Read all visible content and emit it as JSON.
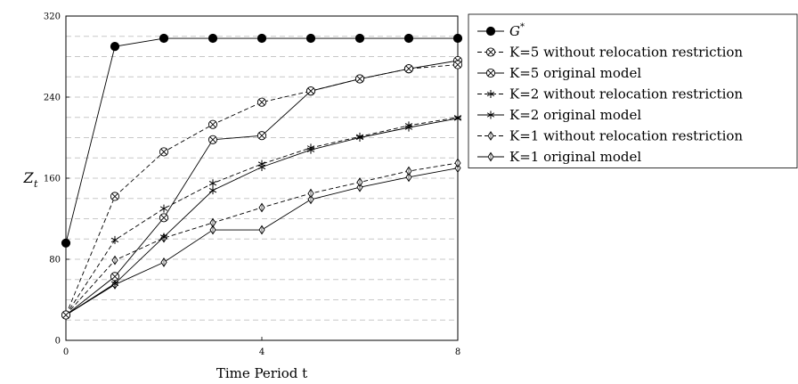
{
  "chart_data": {
    "type": "line",
    "xlabel": "Time Period t",
    "ylabel_main": "Z",
    "ylabel_sub": "t",
    "xlim": [
      0,
      8
    ],
    "ylim": [
      0,
      320
    ],
    "xticks": [
      0,
      4,
      8
    ],
    "yticks": [
      0,
      80,
      160,
      240,
      320
    ],
    "grid": "horizontal dashed",
    "legend_position": "right",
    "x": [
      0,
      1,
      2,
      3,
      4,
      5,
      6,
      7,
      8
    ],
    "series": [
      {
        "name": "G*",
        "legend_main": "G",
        "legend_sup": "*",
        "marker": "filled-circle",
        "dash": "solid",
        "values": [
          96,
          290,
          298,
          298,
          298,
          298,
          298,
          298,
          298
        ]
      },
      {
        "name": "K=5 without relocation restriction",
        "marker": "circle-x",
        "dash": "dashed",
        "values": [
          25,
          142,
          186,
          213,
          235,
          246,
          258,
          268,
          272
        ]
      },
      {
        "name": "K=5 original model",
        "marker": "circle-x",
        "dash": "solid",
        "values": [
          25,
          63,
          121,
          198,
          202,
          246,
          258,
          268,
          276
        ]
      },
      {
        "name": "K=2 without relocation restriction",
        "marker": "star",
        "dash": "dashed",
        "values": [
          25,
          99,
          130,
          155,
          174,
          190,
          201,
          212,
          220
        ]
      },
      {
        "name": "K=2 original model",
        "marker": "star",
        "dash": "solid",
        "values": [
          25,
          56,
          102,
          148,
          171,
          188,
          200,
          210,
          219
        ]
      },
      {
        "name": "K=1 without relocation restriction",
        "marker": "diamond",
        "dash": "dashed",
        "values": [
          25,
          79,
          101,
          116,
          131,
          145,
          156,
          167,
          175
        ]
      },
      {
        "name": "K=1 original model",
        "marker": "diamond",
        "dash": "solid",
        "values": [
          25,
          55,
          77,
          109,
          109,
          139,
          151,
          161,
          170
        ]
      }
    ]
  }
}
